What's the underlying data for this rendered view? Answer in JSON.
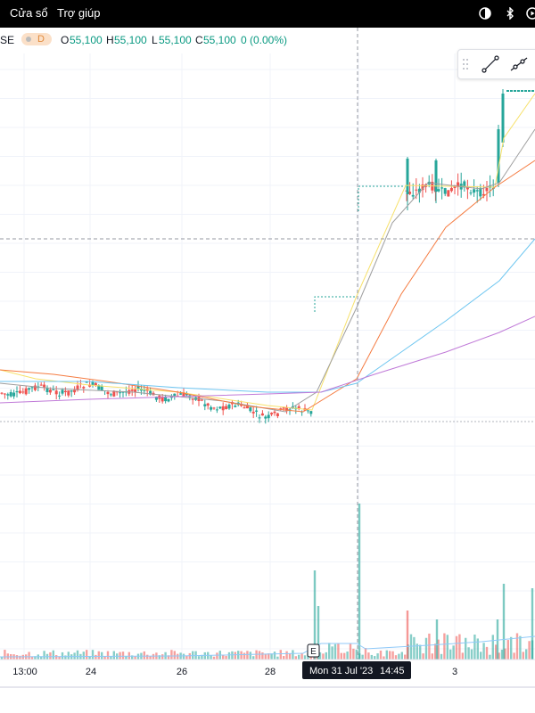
{
  "menubar": {
    "items": [
      "Cửa sổ",
      "Trợ giúp"
    ],
    "icons": [
      "contrast-icon",
      "bluetooth-icon",
      "play-circle-icon"
    ]
  },
  "legend": {
    "symbol_fragment": "SE",
    "interval": "D",
    "o_label": "O",
    "o_value": "55,100",
    "h_label": "H",
    "h_value": "55,100",
    "l_label": "L",
    "l_value": "55,100",
    "c_label": "C",
    "c_value": "55,100",
    "change": "0 (0.00%)",
    "value_color": "#089981"
  },
  "toolbox": {
    "icons": [
      "drag-handle-icon",
      "trend-line-icon",
      "ray-line-icon"
    ]
  },
  "crosshair": {
    "date_label": "Mon 31 Jul '23",
    "time_label": "14:45",
    "event_marker": "E"
  },
  "chart_data": {
    "type": "candlestick",
    "x_ticks": [
      "13:00",
      "24",
      "26",
      "28",
      "3"
    ],
    "colors": {
      "up": "#26a69a",
      "down": "#ef5350",
      "ma_fast": "#f7e16b",
      "ma_gray": "#9e9e9e",
      "ma_orange": "#f57c42",
      "ma_blue": "#6ec6f0",
      "ma_purple": "#c07ad8",
      "volume_ma": "#90caf9"
    }
  }
}
